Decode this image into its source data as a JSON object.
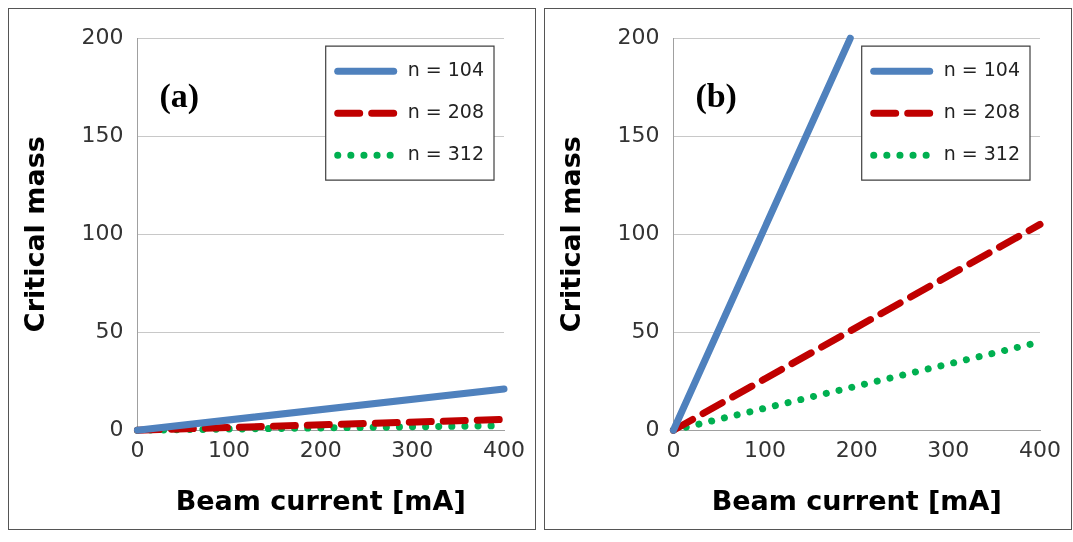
{
  "chart_data": [
    {
      "type": "line",
      "annotations": [
        "(a)"
      ],
      "xlabel": "Beam current [mA]",
      "ylabel": "Critical mass",
      "xlim": [
        0,
        400
      ],
      "xticks": [
        0,
        100,
        200,
        300,
        400
      ],
      "ylim": [
        0,
        200
      ],
      "yticks": [
        0,
        50,
        100,
        150,
        200
      ],
      "grid": "y",
      "legend": "top right",
      "marker": "none",
      "series": [
        {
          "name": "n = 104",
          "color": "#4f81bd",
          "line_style": "solid",
          "x": [
            0,
            400
          ],
          "values": [
            0,
            21
          ]
        },
        {
          "name": "n = 208",
          "color": "#c00000",
          "line_style": "dashed",
          "x": [
            0,
            400
          ],
          "values": [
            0,
            5.5
          ]
        },
        {
          "name": "n = 312",
          "color": "#00b050",
          "line_style": "dotted",
          "x": [
            0,
            400
          ],
          "values": [
            0,
            2.3
          ]
        }
      ]
    },
    {
      "type": "line",
      "annotations": [
        "(b)"
      ],
      "xlabel": "Beam current [mA]",
      "ylabel": "Critical mass",
      "xlim": [
        0,
        400
      ],
      "xticks": [
        0,
        100,
        200,
        300,
        400
      ],
      "ylim": [
        0,
        200
      ],
      "yticks": [
        0,
        50,
        100,
        150,
        200
      ],
      "grid": "y",
      "legend": "top right",
      "marker": "none",
      "series": [
        {
          "name": "n = 104",
          "color": "#4f81bd",
          "line_style": "solid",
          "x": [
            0,
            193
          ],
          "values": [
            0,
            200
          ]
        },
        {
          "name": "n = 208",
          "color": "#c00000",
          "line_style": "dashed",
          "x": [
            0,
            400
          ],
          "values": [
            0,
            105
          ]
        },
        {
          "name": "n = 312",
          "color": "#00b050",
          "line_style": "dotted",
          "x": [
            0,
            400
          ],
          "values": [
            0,
            45
          ]
        }
      ]
    }
  ]
}
